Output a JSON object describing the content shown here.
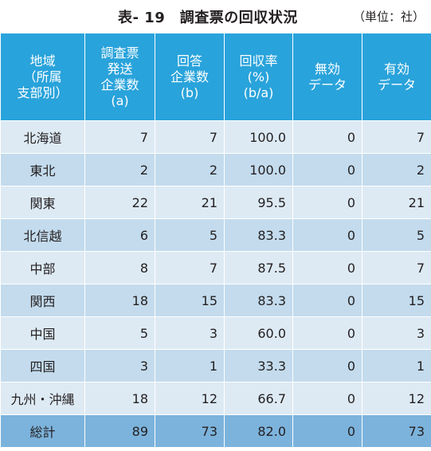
{
  "caption": {
    "title": "表- 19　調査票の回収状況",
    "unit": "（単位：社）"
  },
  "headers": [
    [
      "地域",
      "（所属",
      "支部別）"
    ],
    [
      "調査票",
      "発送",
      "企業数",
      "(a)"
    ],
    [
      "回答",
      "企業数",
      "(b)"
    ],
    [
      "回収率",
      "(%)",
      "(b/a)"
    ],
    [
      "無効",
      "データ"
    ],
    [
      "有効",
      "データ"
    ]
  ],
  "rows": [
    {
      "region": "北海道",
      "sent": "7",
      "answered": "7",
      "rate": "100.0",
      "invalid": "0",
      "valid": "7"
    },
    {
      "region": "東北",
      "sent": "2",
      "answered": "2",
      "rate": "100.0",
      "invalid": "0",
      "valid": "2"
    },
    {
      "region": "関東",
      "sent": "22",
      "answered": "21",
      "rate": "95.5",
      "invalid": "0",
      "valid": "21"
    },
    {
      "region": "北信越",
      "sent": "6",
      "answered": "5",
      "rate": "83.3",
      "invalid": "0",
      "valid": "5"
    },
    {
      "region": "中部",
      "sent": "8",
      "answered": "7",
      "rate": "87.5",
      "invalid": "0",
      "valid": "7"
    },
    {
      "region": "関西",
      "sent": "18",
      "answered": "15",
      "rate": "83.3",
      "invalid": "0",
      "valid": "15"
    },
    {
      "region": "中国",
      "sent": "5",
      "answered": "3",
      "rate": "60.0",
      "invalid": "0",
      "valid": "3"
    },
    {
      "region": "四国",
      "sent": "3",
      "answered": "1",
      "rate": "33.3",
      "invalid": "0",
      "valid": "1"
    },
    {
      "region": "九州・沖縄",
      "sent": "18",
      "answered": "12",
      "rate": "66.7",
      "invalid": "0",
      "valid": "12"
    }
  ],
  "total": {
    "region": "総計",
    "sent": "89",
    "answered": "73",
    "rate": "82.0",
    "invalid": "0",
    "valid": "73"
  },
  "colors": {
    "header_bg": "#29a3db",
    "row_light": "#ddeaf4",
    "row_dark": "#c3dbed",
    "total_bg": "#7cb3dc"
  }
}
